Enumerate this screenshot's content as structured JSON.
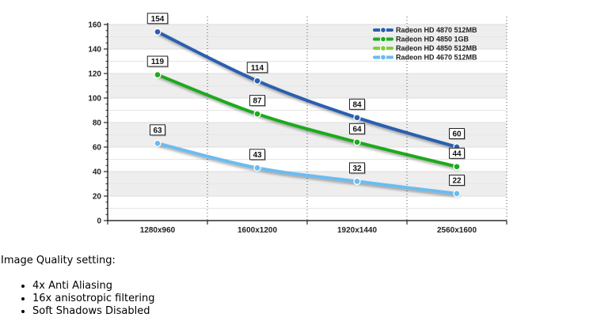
{
  "chart_data": {
    "type": "line",
    "title": "",
    "xlabel": "",
    "ylabel": "",
    "categories": [
      "1280x960",
      "1600x1200",
      "1920x1440",
      "2560x1600"
    ],
    "ylim": [
      0,
      160
    ],
    "yticks": [
      0,
      20,
      40,
      60,
      80,
      100,
      120,
      140,
      160
    ],
    "grid": true,
    "legend_position": "top-right",
    "series": [
      {
        "name": "Radeon HD 4870 512MB",
        "color": "#2a5fb0",
        "values": [
          154,
          114,
          84,
          60
        ]
      },
      {
        "name": "Radeon HD 4850 1GB",
        "color": "#1faa1f",
        "values": [
          119,
          87,
          64,
          44
        ]
      },
      {
        "name": "Radeon HD 4850 512MB",
        "color": "#7ccf3a",
        "values": [
          null,
          null,
          null,
          null
        ]
      },
      {
        "name": "Radeon HD 4670 512MB",
        "color": "#6bbcf0",
        "values": [
          63,
          43,
          32,
          22
        ]
      }
    ]
  },
  "notes": {
    "heading": "Image Quality setting:",
    "items": [
      "4x Anti Aliasing",
      "16x anisotropic filtering",
      "Soft Shadows Disabled"
    ]
  }
}
